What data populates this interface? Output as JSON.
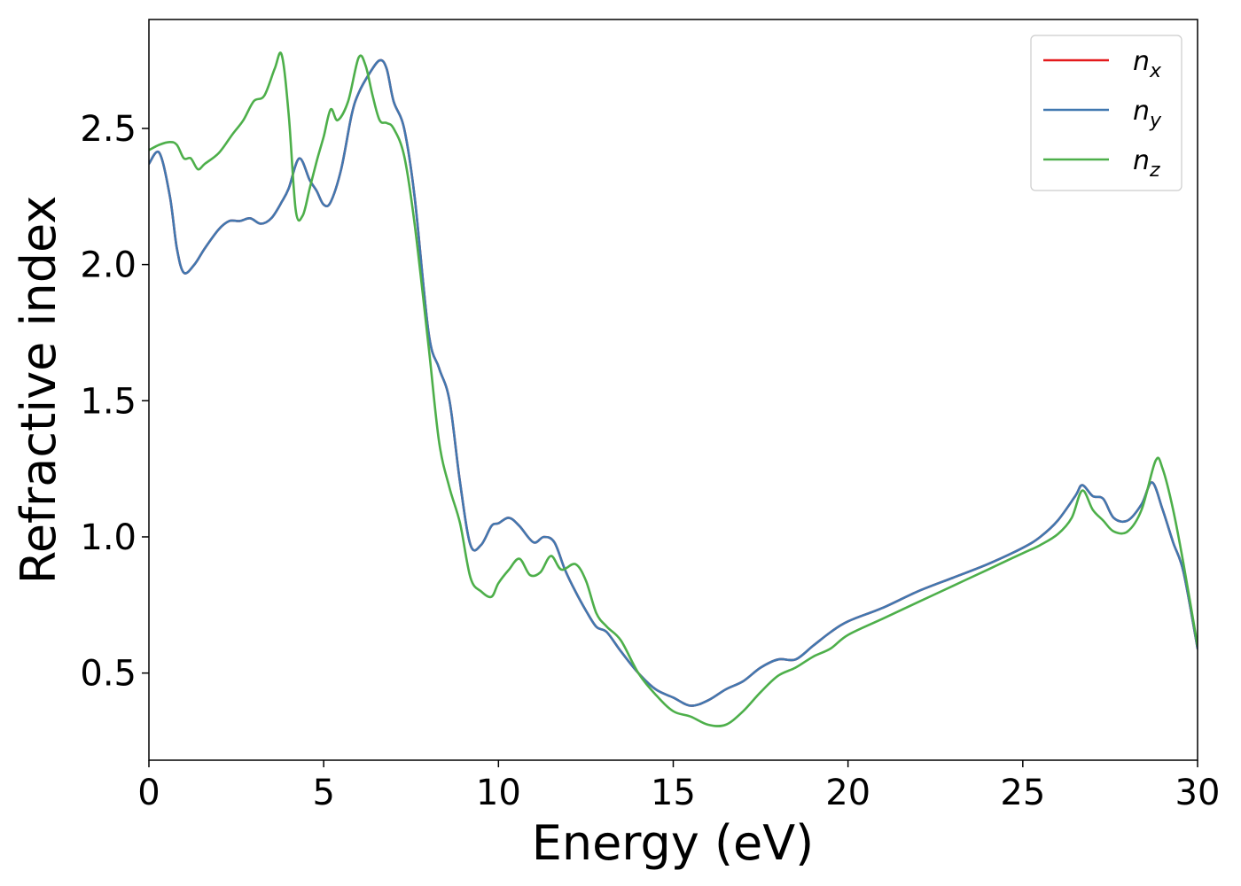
{
  "chart_data": {
    "type": "line",
    "xlabel": "Energy (eV)",
    "ylabel": "Refractive index",
    "xlim": [
      0,
      30
    ],
    "ylim": [
      0.18,
      2.9
    ],
    "xticks": [
      "0",
      "5",
      "10",
      "15",
      "20",
      "25",
      "30"
    ],
    "xtick_values": [
      0,
      5,
      10,
      15,
      20,
      25,
      30
    ],
    "yticks": [
      "0.5",
      "1.0",
      "1.5",
      "2.0",
      "2.5"
    ],
    "ytick_values": [
      0.5,
      1.0,
      1.5,
      2.0,
      2.5
    ],
    "grid": false,
    "legend_position": "top-right",
    "series": [
      {
        "name": "n",
        "subscript": "x",
        "color": "#e41a1c",
        "x": [
          0,
          0.3,
          0.6,
          0.8,
          1.0,
          1.3,
          1.6,
          2.0,
          2.3,
          2.6,
          2.9,
          3.2,
          3.5,
          3.8,
          4.0,
          4.3,
          4.6,
          4.8,
          5.0,
          5.2,
          5.5,
          5.8,
          6.0,
          6.3,
          6.6,
          6.8,
          7.0,
          7.3,
          7.6,
          8.0,
          8.3,
          8.6,
          8.9,
          9.2,
          9.5,
          9.8,
          10.0,
          10.3,
          10.6,
          11.0,
          11.3,
          11.6,
          11.9,
          12.2,
          12.5,
          12.8,
          13.1,
          13.5,
          14.0,
          14.5,
          15.0,
          15.5,
          16.0,
          16.5,
          17.0,
          17.5,
          18.0,
          18.5,
          19.0,
          19.5,
          20.0,
          21.0,
          22.0,
          23.0,
          24.0,
          25.0,
          25.5,
          26.0,
          26.5,
          26.7,
          27.0,
          27.3,
          27.6,
          28.0,
          28.4,
          28.7,
          29.0,
          29.3,
          29.6,
          30.0
        ],
        "y": [
          2.37,
          2.41,
          2.25,
          2.06,
          1.97,
          2.0,
          2.06,
          2.13,
          2.16,
          2.16,
          2.17,
          2.15,
          2.17,
          2.23,
          2.28,
          2.39,
          2.31,
          2.27,
          2.22,
          2.23,
          2.35,
          2.55,
          2.63,
          2.7,
          2.75,
          2.72,
          2.6,
          2.5,
          2.25,
          1.75,
          1.62,
          1.5,
          1.2,
          0.97,
          0.97,
          1.04,
          1.05,
          1.07,
          1.04,
          0.98,
          1.0,
          0.98,
          0.88,
          0.8,
          0.73,
          0.67,
          0.65,
          0.58,
          0.5,
          0.44,
          0.41,
          0.38,
          0.4,
          0.44,
          0.47,
          0.52,
          0.55,
          0.55,
          0.6,
          0.65,
          0.69,
          0.74,
          0.8,
          0.85,
          0.9,
          0.96,
          1.0,
          1.06,
          1.15,
          1.19,
          1.15,
          1.14,
          1.07,
          1.06,
          1.12,
          1.2,
          1.1,
          0.98,
          0.87,
          0.59
        ]
      },
      {
        "name": "n",
        "subscript": "y",
        "color": "#4178b0",
        "x": [
          0,
          0.3,
          0.6,
          0.8,
          1.0,
          1.3,
          1.6,
          2.0,
          2.3,
          2.6,
          2.9,
          3.2,
          3.5,
          3.8,
          4.0,
          4.3,
          4.6,
          4.8,
          5.0,
          5.2,
          5.5,
          5.8,
          6.0,
          6.3,
          6.6,
          6.8,
          7.0,
          7.3,
          7.6,
          8.0,
          8.3,
          8.6,
          8.9,
          9.2,
          9.5,
          9.8,
          10.0,
          10.3,
          10.6,
          11.0,
          11.3,
          11.6,
          11.9,
          12.2,
          12.5,
          12.8,
          13.1,
          13.5,
          14.0,
          14.5,
          15.0,
          15.5,
          16.0,
          16.5,
          17.0,
          17.5,
          18.0,
          18.5,
          19.0,
          19.5,
          20.0,
          21.0,
          22.0,
          23.0,
          24.0,
          25.0,
          25.5,
          26.0,
          26.5,
          26.7,
          27.0,
          27.3,
          27.6,
          28.0,
          28.4,
          28.7,
          29.0,
          29.3,
          29.6,
          30.0
        ],
        "y": [
          2.37,
          2.41,
          2.25,
          2.06,
          1.97,
          2.0,
          2.06,
          2.13,
          2.16,
          2.16,
          2.17,
          2.15,
          2.17,
          2.23,
          2.28,
          2.39,
          2.31,
          2.27,
          2.22,
          2.23,
          2.35,
          2.55,
          2.63,
          2.7,
          2.75,
          2.72,
          2.6,
          2.5,
          2.25,
          1.75,
          1.62,
          1.5,
          1.2,
          0.97,
          0.97,
          1.04,
          1.05,
          1.07,
          1.04,
          0.98,
          1.0,
          0.98,
          0.88,
          0.8,
          0.73,
          0.67,
          0.65,
          0.58,
          0.5,
          0.44,
          0.41,
          0.38,
          0.4,
          0.44,
          0.47,
          0.52,
          0.55,
          0.55,
          0.6,
          0.65,
          0.69,
          0.74,
          0.8,
          0.85,
          0.9,
          0.96,
          1.0,
          1.06,
          1.15,
          1.19,
          1.15,
          1.14,
          1.07,
          1.06,
          1.12,
          1.2,
          1.1,
          0.98,
          0.87,
          0.59
        ]
      },
      {
        "name": "n",
        "subscript": "z",
        "color": "#4daf4a",
        "x": [
          0,
          0.3,
          0.6,
          0.8,
          1.0,
          1.2,
          1.4,
          1.6,
          2.0,
          2.4,
          2.7,
          3.0,
          3.3,
          3.6,
          3.8,
          4.0,
          4.2,
          4.4,
          4.6,
          4.8,
          5.0,
          5.2,
          5.4,
          5.7,
          6.0,
          6.2,
          6.4,
          6.6,
          6.8,
          7.0,
          7.3,
          7.6,
          8.0,
          8.3,
          8.6,
          8.9,
          9.2,
          9.5,
          9.8,
          10.0,
          10.3,
          10.6,
          10.9,
          11.2,
          11.5,
          11.8,
          12.2,
          12.5,
          12.8,
          13.1,
          13.5,
          14.0,
          14.5,
          15.0,
          15.5,
          16.0,
          16.5,
          17.0,
          17.5,
          18.0,
          18.5,
          19.0,
          19.5,
          20.0,
          21.0,
          22.0,
          23.0,
          24.0,
          25.0,
          25.5,
          26.0,
          26.4,
          26.7,
          27.0,
          27.3,
          27.6,
          28.0,
          28.4,
          28.8,
          29.0,
          29.3,
          29.6,
          30.0
        ],
        "y": [
          2.42,
          2.44,
          2.45,
          2.44,
          2.39,
          2.39,
          2.35,
          2.37,
          2.41,
          2.48,
          2.53,
          2.6,
          2.62,
          2.72,
          2.77,
          2.55,
          2.2,
          2.18,
          2.28,
          2.38,
          2.47,
          2.57,
          2.53,
          2.6,
          2.76,
          2.73,
          2.62,
          2.53,
          2.52,
          2.5,
          2.4,
          2.15,
          1.7,
          1.35,
          1.18,
          1.05,
          0.85,
          0.8,
          0.78,
          0.83,
          0.88,
          0.92,
          0.86,
          0.87,
          0.93,
          0.88,
          0.9,
          0.84,
          0.72,
          0.67,
          0.62,
          0.5,
          0.42,
          0.36,
          0.34,
          0.31,
          0.31,
          0.36,
          0.43,
          0.49,
          0.52,
          0.56,
          0.59,
          0.64,
          0.7,
          0.76,
          0.82,
          0.88,
          0.94,
          0.97,
          1.01,
          1.07,
          1.17,
          1.1,
          1.06,
          1.02,
          1.02,
          1.1,
          1.28,
          1.25,
          1.1,
          0.9,
          0.6
        ]
      }
    ]
  }
}
